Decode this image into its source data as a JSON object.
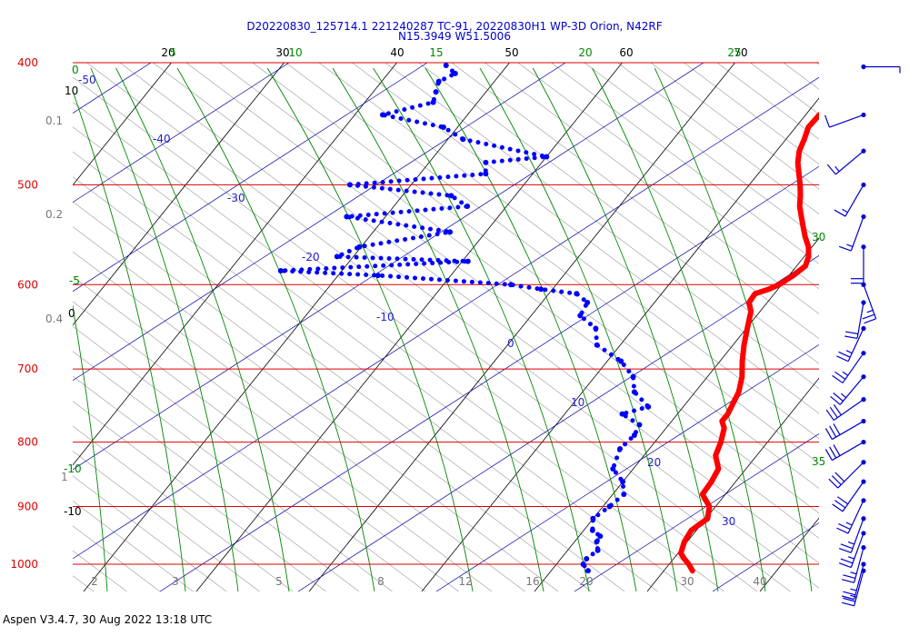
{
  "title_line1": "D20220830_125714.1 221240287 TC-91, 20220830H1 WP-3D Orion, N42RF",
  "title_line2": "N15.3949 W51.5006",
  "footer": "Aspen V3.4.7, 30 Aug 2022  13:18 UTC",
  "colors": {
    "temperature": "#ff0000",
    "dewpoint": "#0000ff",
    "isobar": "#dd0000",
    "isotherm": "#000000",
    "dry_adiabat": "#999999",
    "moist_adiabat": "#008800",
    "mixing_ratio": "#0000aa",
    "wind": "#0000cc"
  },
  "chart_data": {
    "type": "scatter",
    "subtype": "skew-t log-p sounding",
    "pressure_levels": [
      400,
      500,
      600,
      700,
      800,
      900,
      1000
    ],
    "pressure_labels": [
      "400",
      "500",
      "600",
      "700",
      "800",
      "900",
      "1000"
    ],
    "top_temperature_labels": [
      "20",
      "30",
      "40",
      "50",
      "60",
      "70"
    ],
    "green_top_labels": [
      "5",
      "10",
      "15",
      "20",
      "25"
    ],
    "green_side_labels": [
      "0",
      "-5",
      "-10",
      "30",
      "35"
    ],
    "blue_labels": [
      "-50",
      "-40",
      "-30",
      "-20",
      "-10",
      "0",
      "10",
      "20",
      "30"
    ],
    "left_black_labels": [
      "10",
      "0",
      "-10"
    ],
    "left_gray_labels": [
      "0.1",
      "0.2",
      "0.4",
      "1"
    ],
    "bottom_gray_labels": [
      "2",
      "3",
      "5",
      "8",
      "12",
      "16",
      "20",
      "30",
      "40"
    ],
    "series": [
      {
        "role": "temperature",
        "points": [
          [
            403,
            14.0
          ],
          [
            410,
            14.3
          ],
          [
            420,
            14.0
          ],
          [
            430,
            13.4
          ],
          [
            440,
            12.8
          ],
          [
            450,
            12.7
          ],
          [
            460,
            13.2
          ],
          [
            470,
            13.6
          ],
          [
            480,
            14.3
          ],
          [
            490,
            15.2
          ],
          [
            500,
            16.1
          ],
          [
            510,
            16.9
          ],
          [
            520,
            17.6
          ],
          [
            530,
            18.5
          ],
          [
            540,
            19.4
          ],
          [
            550,
            20.3
          ],
          [
            560,
            21.3
          ],
          [
            570,
            22.0
          ],
          [
            580,
            22.4
          ],
          [
            590,
            22.0
          ],
          [
            600,
            21.4
          ],
          [
            605,
            20.8
          ],
          [
            610,
            19.9
          ],
          [
            620,
            20.0
          ],
          [
            630,
            20.8
          ],
          [
            650,
            21.7
          ],
          [
            670,
            22.6
          ],
          [
            690,
            23.6
          ],
          [
            710,
            24.7
          ],
          [
            730,
            25.5
          ],
          [
            750,
            25.9
          ],
          [
            760,
            26.1
          ],
          [
            770,
            26.1
          ],
          [
            780,
            26.8
          ],
          [
            800,
            27.5
          ],
          [
            820,
            28.0
          ],
          [
            840,
            29.2
          ],
          [
            860,
            29.5
          ],
          [
            880,
            29.6
          ],
          [
            900,
            31.1
          ],
          [
            920,
            31.8
          ],
          [
            940,
            31.2
          ],
          [
            960,
            31.4
          ],
          [
            980,
            31.9
          ],
          [
            990,
            32.6
          ],
          [
            1000,
            33.4
          ],
          [
            1012,
            34.2
          ]
        ]
      },
      {
        "role": "dewpoint",
        "points": [
          [
            402,
            -24.0
          ],
          [
            408,
            -22.6
          ],
          [
            414,
            -23.5
          ],
          [
            422,
            -23.0
          ],
          [
            430,
            -22.5
          ],
          [
            440,
            -26.1
          ],
          [
            450,
            -19.8
          ],
          [
            460,
            -17.2
          ],
          [
            475,
            -8.5
          ],
          [
            480,
            -13.5
          ],
          [
            490,
            -12.7
          ],
          [
            500,
            -24.0
          ],
          [
            510,
            -14.2
          ],
          [
            520,
            -12.0
          ],
          [
            530,
            -22.0
          ],
          [
            545,
            -11.7
          ],
          [
            560,
            -18.7
          ],
          [
            570,
            -20.0
          ],
          [
            575,
            -8.0
          ],
          [
            585,
            -24.0
          ],
          [
            590,
            -15.0
          ],
          [
            600,
            -2.5
          ],
          [
            605,
            0.5
          ],
          [
            610,
            4.0
          ],
          [
            620,
            5.6
          ],
          [
            635,
            5.9
          ],
          [
            650,
            8.2
          ],
          [
            670,
            9.5
          ],
          [
            690,
            12.8
          ],
          [
            710,
            15.0
          ],
          [
            730,
            16.2
          ],
          [
            750,
            18.5
          ],
          [
            760,
            16.7
          ],
          [
            775,
            19.0
          ],
          [
            790,
            19.3
          ],
          [
            810,
            19.0
          ],
          [
            840,
            19.8
          ],
          [
            860,
            21.6
          ],
          [
            880,
            22.6
          ],
          [
            900,
            22.2
          ],
          [
            920,
            21.6
          ],
          [
            940,
            22.4
          ],
          [
            950,
            23.5
          ],
          [
            960,
            23.6
          ],
          [
            975,
            24.3
          ],
          [
            990,
            23.9
          ],
          [
            1000,
            24.0
          ],
          [
            1012,
            24.9
          ]
        ]
      }
    ],
    "wind_barbs": [
      {
        "p": 403,
        "speed_kt": 5,
        "dir_deg": 90
      },
      {
        "p": 440,
        "speed_kt": 10,
        "dir_deg": 250
      },
      {
        "p": 470,
        "speed_kt": 15,
        "dir_deg": 230
      },
      {
        "p": 500,
        "speed_kt": 15,
        "dir_deg": 210
      },
      {
        "p": 530,
        "speed_kt": 15,
        "dir_deg": 200
      },
      {
        "p": 560,
        "speed_kt": 20,
        "dir_deg": 180
      },
      {
        "p": 600,
        "speed_kt": 25,
        "dir_deg": 160
      },
      {
        "p": 620,
        "speed_kt": 20,
        "dir_deg": 190
      },
      {
        "p": 650,
        "speed_kt": 25,
        "dir_deg": 205
      },
      {
        "p": 680,
        "speed_kt": 25,
        "dir_deg": 215
      },
      {
        "p": 710,
        "speed_kt": 25,
        "dir_deg": 220
      },
      {
        "p": 740,
        "speed_kt": 30,
        "dir_deg": 235
      },
      {
        "p": 770,
        "speed_kt": 30,
        "dir_deg": 240
      },
      {
        "p": 800,
        "speed_kt": 30,
        "dir_deg": 240
      },
      {
        "p": 830,
        "speed_kt": 30,
        "dir_deg": 225
      },
      {
        "p": 860,
        "speed_kt": 30,
        "dir_deg": 215
      },
      {
        "p": 890,
        "speed_kt": 25,
        "dir_deg": 205
      },
      {
        "p": 920,
        "speed_kt": 25,
        "dir_deg": 200
      },
      {
        "p": 945,
        "speed_kt": 25,
        "dir_deg": 200
      },
      {
        "p": 970,
        "speed_kt": 25,
        "dir_deg": 195
      },
      {
        "p": 1000,
        "speed_kt": 25,
        "dir_deg": 195
      },
      {
        "p": 1012,
        "speed_kt": 25,
        "dir_deg": 195
      }
    ]
  }
}
